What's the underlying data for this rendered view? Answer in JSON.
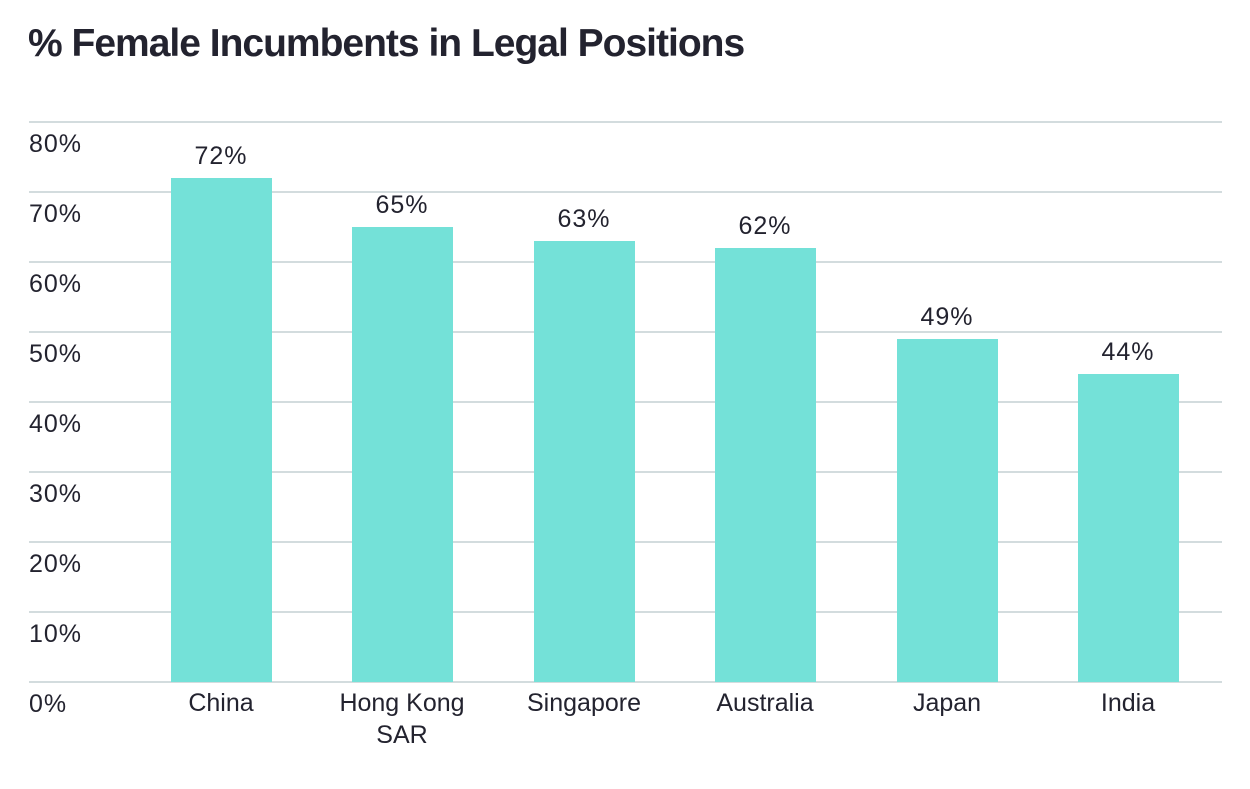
{
  "chart_data": {
    "type": "bar",
    "title": "% Female Incumbents in Legal Positions",
    "xlabel": "",
    "ylabel": "",
    "categories": [
      "China",
      "Hong Kong SAR",
      "Singapore",
      "Australia",
      "Japan",
      "India"
    ],
    "category_lines": [
      [
        "China"
      ],
      [
        "Hong Kong",
        "SAR"
      ],
      [
        "Singapore"
      ],
      [
        "Australia"
      ],
      [
        "Japan"
      ],
      [
        "India"
      ]
    ],
    "values": [
      72,
      65,
      63,
      62,
      49,
      44
    ],
    "value_labels": [
      "72%",
      "65%",
      "63%",
      "62%",
      "49%",
      "44%"
    ],
    "ylim": [
      0,
      80
    ],
    "yticks": [
      0,
      10,
      20,
      30,
      40,
      50,
      60,
      70,
      80
    ],
    "ytick_labels": [
      "0%",
      "10%",
      "20%",
      "30%",
      "40%",
      "50%",
      "60%",
      "70%",
      "80%"
    ],
    "grid": true,
    "legend": null,
    "colors": {
      "bar": "#74e1d8",
      "grid": "#d3dcde",
      "text": "#23232f"
    }
  }
}
